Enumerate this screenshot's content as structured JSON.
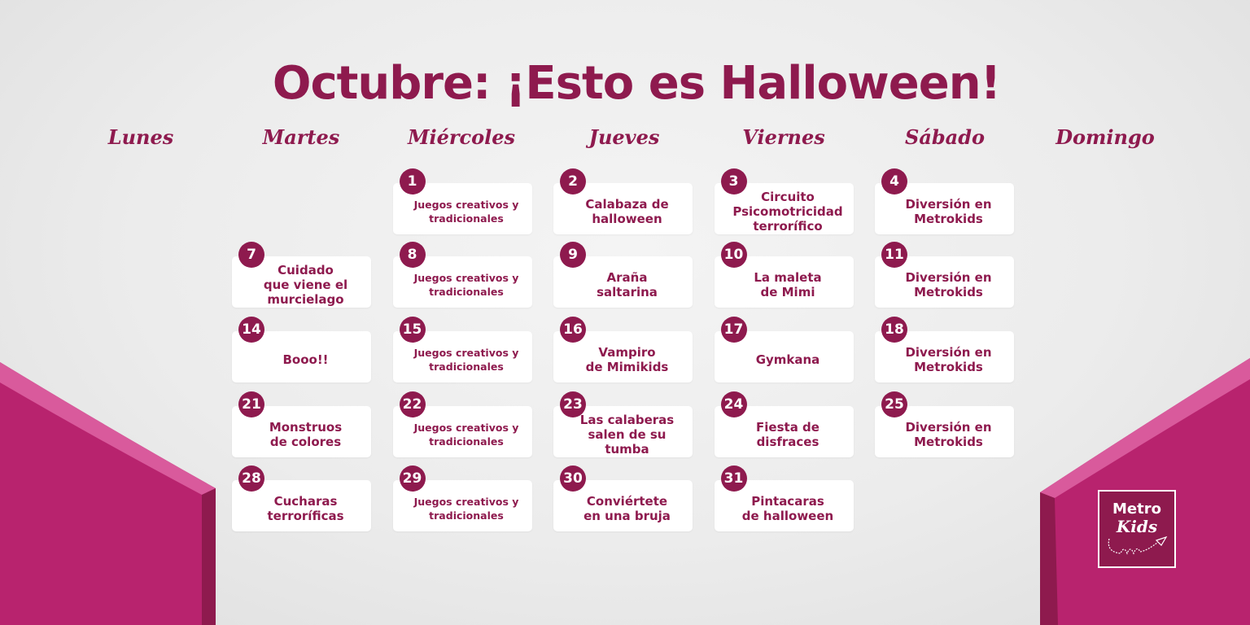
{
  "title": "Octubre: ¡Esto es Halloween!",
  "weekdays": [
    "Lunes",
    "Martes",
    "Miércoles",
    "Jueves",
    "Viernes",
    "Sábado",
    "Domingo"
  ],
  "colors": {
    "primary": "#8e1a4e",
    "side_panel": "#b8236e",
    "side_panel_light": "#d95a9c",
    "background": "#ececec",
    "card": "#ffffff"
  },
  "events": [
    {
      "day": "1",
      "text": "Juegos creativos y\ntradicionales"
    },
    {
      "day": "2",
      "text": "Calabaza de\nhalloween"
    },
    {
      "day": "3",
      "text": "Circuito\nPsicomotricidad\nterrorífico"
    },
    {
      "day": "4",
      "text": "Diversión en\nMetrokids"
    },
    {
      "day": "7",
      "text": "Cuidado\nque viene el\nmurcielago"
    },
    {
      "day": "8",
      "text": "Juegos creativos y\ntradicionales"
    },
    {
      "day": "9",
      "text": "Araña\nsaltarina"
    },
    {
      "day": "10",
      "text": "La maleta\nde Mimi"
    },
    {
      "day": "11",
      "text": "Diversión en\nMetrokids"
    },
    {
      "day": "14",
      "text": "Booo!!"
    },
    {
      "day": "15",
      "text": "Juegos creativos y\ntradicionales"
    },
    {
      "day": "16",
      "text": "Vampiro\nde Mimikids"
    },
    {
      "day": "17",
      "text": "Gymkana"
    },
    {
      "day": "18",
      "text": "Diversión en\nMetrokids"
    },
    {
      "day": "21",
      "text": "Monstruos\nde colores"
    },
    {
      "day": "22",
      "text": "Juegos creativos y\ntradicionales"
    },
    {
      "day": "23",
      "text": "Las calaberas\nsalen de su\ntumba"
    },
    {
      "day": "24",
      "text": "Fiesta de\ndisfraces"
    },
    {
      "day": "25",
      "text": "Diversión en\nMetrokids"
    },
    {
      "day": "28",
      "text": "Cucharas\nterroríficas"
    },
    {
      "day": "29",
      "text": "Juegos creativos y\ntradicionales"
    },
    {
      "day": "30",
      "text": "Conviértete\nen una bruja"
    },
    {
      "day": "31",
      "text": "Pintacaras\nde halloween"
    }
  ],
  "logo": {
    "line1": "Metro",
    "line2": "Kids"
  }
}
